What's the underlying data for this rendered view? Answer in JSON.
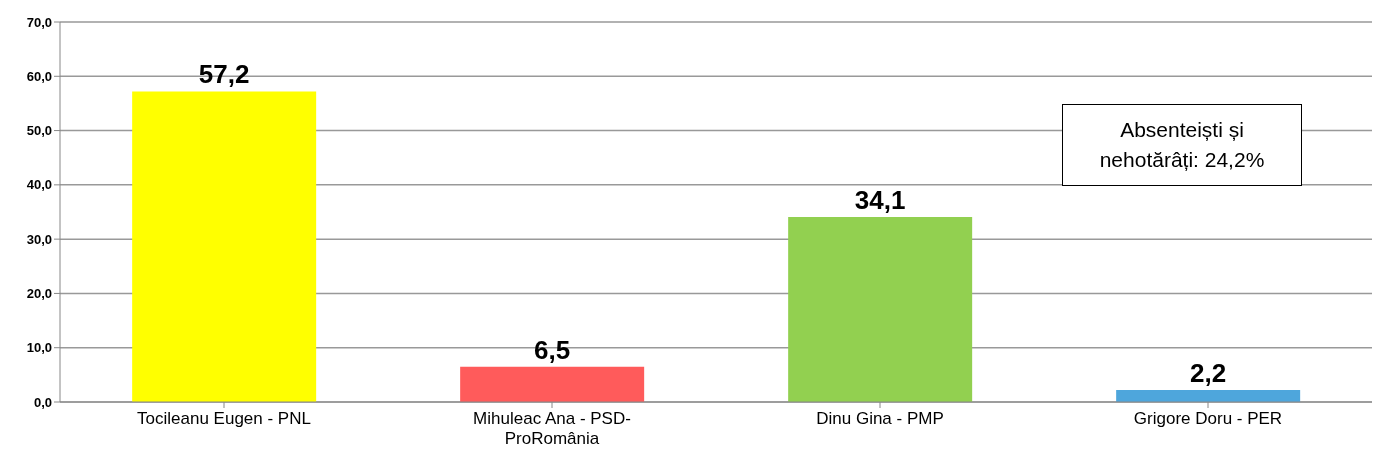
{
  "chart_data": {
    "type": "bar",
    "categories": [
      "Tocileanu Eugen - PNL",
      "Mihuleac Ana - PSD-ProRomânia",
      "Dinu Gina - PMP",
      "Grigore Doru - PER"
    ],
    "values": [
      57.2,
      6.5,
      34.1,
      2.2
    ],
    "colors": [
      "#ffff00",
      "#ff5b5b",
      "#92d050",
      "#4ea6dc"
    ],
    "value_labels": [
      "57,2",
      "6,5",
      "34,1",
      "2,2"
    ],
    "ylim": [
      0,
      70
    ],
    "yticks": [
      {
        "value": 0,
        "label": "0,0"
      },
      {
        "value": 10,
        "label": "10,0"
      },
      {
        "value": 20,
        "label": "20,0"
      },
      {
        "value": 30,
        "label": "30,0"
      },
      {
        "value": 40,
        "label": "40,0"
      },
      {
        "value": 50,
        "label": "50,0"
      },
      {
        "value": 60,
        "label": "60,0"
      },
      {
        "value": 70,
        "label": "70,0"
      }
    ],
    "grid": "y",
    "annotations": [
      "Absenteiști și nehotărâți: 24,2%"
    ]
  }
}
